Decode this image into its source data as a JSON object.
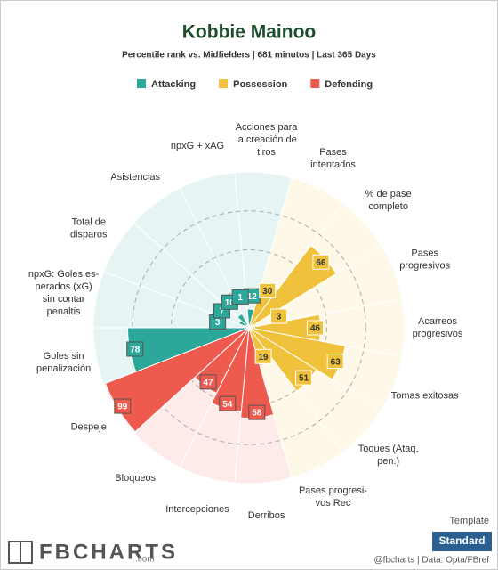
{
  "chart_data": {
    "type": "polar-bar",
    "title": "Kobbie Mainoo",
    "subtitle": "Percentile rank vs. Midfielders | 681 minutos | Last 365 Days",
    "categories": [
      "Acciones para\nla creación de\ntiros",
      "Pases\nintentados",
      "% de pase\ncompleto",
      "Pases\nprogresivos",
      "Acarreos\nprogresivos",
      "Tomas exitosas",
      "Toques (Ataq.\npen.)",
      "Pases progresi-\nvos Rec",
      "Derribos",
      "Intercepciones",
      "Bloqueos",
      "Despeje",
      "Goles sin\npenalización",
      "npxG: Goles es-\nperados (xG)\nsin contar\npenaltis",
      "Total de\ndisparos",
      "Asistencias",
      "npxG + xAG"
    ],
    "series": [
      {
        "name": "Attacking",
        "color": "#2ba89a",
        "values": [
          12,
          null,
          null,
          null,
          null,
          null,
          null,
          null,
          null,
          null,
          null,
          null,
          78,
          3,
          7,
          10,
          1
        ]
      },
      {
        "name": "Possession",
        "color": "#f0c13a",
        "values": [
          null,
          30,
          66,
          3,
          46,
          63,
          51,
          19,
          null,
          null,
          null,
          null,
          null,
          null,
          null,
          null,
          null
        ]
      },
      {
        "name": "Defending",
        "color": "#ef5a4f",
        "values": [
          null,
          null,
          null,
          null,
          null,
          null,
          null,
          null,
          58,
          54,
          47,
          99,
          null,
          null,
          null,
          null,
          null
        ]
      }
    ],
    "ylim": [
      0,
      100
    ]
  },
  "branding": {
    "logo": "FBCHARTS",
    "logo_suffix": ".com",
    "credit": "@fbcharts | Data: Opta/FBref",
    "template_label": "Template",
    "template_button": "Standard"
  }
}
